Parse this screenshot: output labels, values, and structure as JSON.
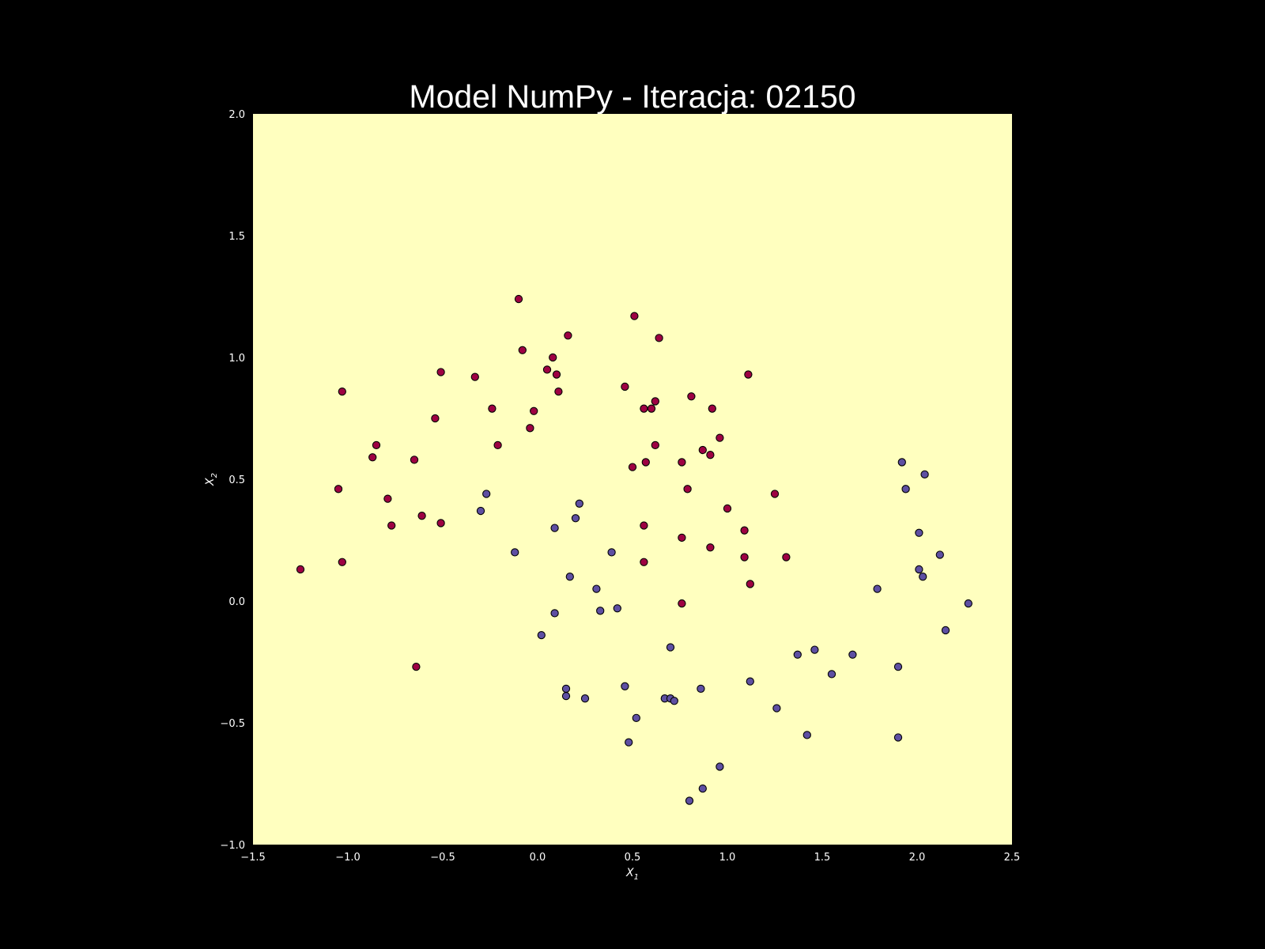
{
  "chart_data": {
    "type": "scatter",
    "title": "Model NumPy - Iteracja: 02150",
    "xlabel": "X",
    "xlabel_sub": "1",
    "ylabel": "X",
    "ylabel_sub": "2",
    "xlim": [
      -1.5,
      2.5
    ],
    "ylim": [
      -1.0,
      2.0
    ],
    "xticks": [
      -1.5,
      -1.0,
      -0.5,
      0.0,
      0.5,
      1.0,
      1.5,
      2.0,
      2.5
    ],
    "xtick_labels": [
      "−1.5",
      "−1.0",
      "−0.5",
      "0.0",
      "0.5",
      "1.0",
      "1.5",
      "2.0",
      "2.5"
    ],
    "yticks": [
      -1.0,
      -0.5,
      0.0,
      0.5,
      1.0,
      1.5,
      2.0
    ],
    "ytick_labels": [
      "−1.0",
      "−0.5",
      "0.0",
      "0.5",
      "1.0",
      "1.5",
      "2.0"
    ],
    "grid": false,
    "background_color": "#ffffbf",
    "colors": {
      "class_0": "#9e0142",
      "class_1": "#5e4fa2",
      "edge": "#000000"
    },
    "series": [
      {
        "class": 0,
        "points": [
          [
            -0.1,
            1.24
          ],
          [
            0.51,
            1.17
          ],
          [
            0.16,
            1.09
          ],
          [
            0.64,
            1.08
          ],
          [
            -0.08,
            1.03
          ],
          [
            0.08,
            1.0
          ],
          [
            0.05,
            0.95
          ],
          [
            0.1,
            0.93
          ],
          [
            -0.51,
            0.94
          ],
          [
            -0.33,
            0.92
          ],
          [
            1.11,
            0.93
          ],
          [
            -1.03,
            0.86
          ],
          [
            0.11,
            0.86
          ],
          [
            0.46,
            0.88
          ],
          [
            0.81,
            0.84
          ],
          [
            0.62,
            0.82
          ],
          [
            -0.24,
            0.79
          ],
          [
            0.56,
            0.79
          ],
          [
            0.6,
            0.79
          ],
          [
            0.92,
            0.79
          ],
          [
            -0.02,
            0.78
          ],
          [
            -0.54,
            0.75
          ],
          [
            -0.04,
            0.71
          ],
          [
            0.96,
            0.67
          ],
          [
            -0.85,
            0.64
          ],
          [
            -0.21,
            0.64
          ],
          [
            0.62,
            0.64
          ],
          [
            0.87,
            0.62
          ],
          [
            0.91,
            0.6
          ],
          [
            -0.87,
            0.59
          ],
          [
            -0.65,
            0.58
          ],
          [
            0.57,
            0.57
          ],
          [
            0.76,
            0.57
          ],
          [
            0.5,
            0.55
          ],
          [
            -1.05,
            0.46
          ],
          [
            0.79,
            0.46
          ],
          [
            1.25,
            0.44
          ],
          [
            -0.79,
            0.42
          ],
          [
            1.0,
            0.38
          ],
          [
            -0.61,
            0.35
          ],
          [
            -0.51,
            0.32
          ],
          [
            -0.77,
            0.31
          ],
          [
            0.56,
            0.31
          ],
          [
            1.09,
            0.29
          ],
          [
            0.76,
            0.26
          ],
          [
            0.91,
            0.22
          ],
          [
            1.09,
            0.18
          ],
          [
            1.31,
            0.18
          ],
          [
            -1.03,
            0.16
          ],
          [
            0.56,
            0.16
          ],
          [
            -1.25,
            0.13
          ],
          [
            1.12,
            0.07
          ],
          [
            0.76,
            -0.01
          ],
          [
            -0.64,
            -0.27
          ]
        ]
      },
      {
        "class": 1,
        "points": [
          [
            1.92,
            0.57
          ],
          [
            2.04,
            0.52
          ],
          [
            1.94,
            0.46
          ],
          [
            -0.27,
            0.44
          ],
          [
            0.22,
            0.4
          ],
          [
            -0.3,
            0.37
          ],
          [
            0.2,
            0.34
          ],
          [
            0.09,
            0.3
          ],
          [
            2.01,
            0.28
          ],
          [
            0.39,
            0.2
          ],
          [
            -0.12,
            0.2
          ],
          [
            2.12,
            0.19
          ],
          [
            2.01,
            0.13
          ],
          [
            2.03,
            0.1
          ],
          [
            0.17,
            0.1
          ],
          [
            1.79,
            0.05
          ],
          [
            0.31,
            0.05
          ],
          [
            2.27,
            -0.01
          ],
          [
            0.42,
            -0.03
          ],
          [
            0.33,
            -0.04
          ],
          [
            0.09,
            -0.05
          ],
          [
            2.15,
            -0.12
          ],
          [
            0.02,
            -0.14
          ],
          [
            0.7,
            -0.19
          ],
          [
            1.46,
            -0.2
          ],
          [
            1.66,
            -0.22
          ],
          [
            1.37,
            -0.22
          ],
          [
            1.9,
            -0.27
          ],
          [
            1.55,
            -0.3
          ],
          [
            1.12,
            -0.33
          ],
          [
            0.46,
            -0.35
          ],
          [
            0.15,
            -0.36
          ],
          [
            0.86,
            -0.36
          ],
          [
            0.15,
            -0.39
          ],
          [
            0.25,
            -0.4
          ],
          [
            0.67,
            -0.4
          ],
          [
            0.7,
            -0.4
          ],
          [
            0.72,
            -0.41
          ],
          [
            1.26,
            -0.44
          ],
          [
            0.52,
            -0.48
          ],
          [
            1.42,
            -0.55
          ],
          [
            1.9,
            -0.56
          ],
          [
            0.48,
            -0.58
          ],
          [
            0.96,
            -0.68
          ],
          [
            0.87,
            -0.77
          ],
          [
            0.8,
            -0.82
          ]
        ]
      }
    ]
  }
}
